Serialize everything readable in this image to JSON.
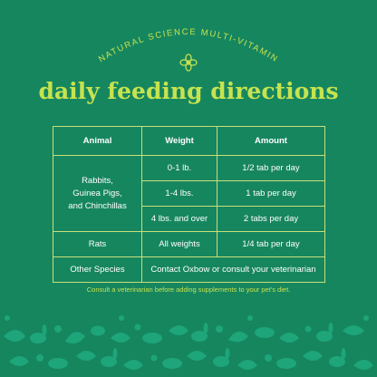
{
  "header": {
    "arc_text": "NATURAL SCIENCE MULTI-VITAMIN",
    "title": "daily feeding directions"
  },
  "table": {
    "headers": {
      "animal": "Animal",
      "weight": "Weight",
      "amount": "Amount"
    },
    "group": {
      "animal": "Rabbits, Guinea Pigs, and Chinchillas",
      "animal_line1": "Rabbits,",
      "animal_line2": "Guinea Pigs,",
      "animal_line3": "and Chinchillas",
      "rows": [
        {
          "weight": "0-1 lb.",
          "amount": "1/2 tab per day"
        },
        {
          "weight": "1-4 lbs.",
          "amount": "1 tab per day"
        },
        {
          "weight": "4 lbs. and over",
          "amount": "2 tabs per day"
        }
      ]
    },
    "rats": {
      "animal": "Rats",
      "weight": "All weights",
      "amount": "1/4 tab per day"
    },
    "other": {
      "animal": "Other Species",
      "note": "Contact Oxbow or consult your veterinarian"
    }
  },
  "footer_note": "Consult a veterinarian before adding supplements to your pet's diet.",
  "colors": {
    "background": "#16865f",
    "accent": "#c6e34f",
    "pattern": "#1ea57a",
    "border": "#c9df78"
  }
}
